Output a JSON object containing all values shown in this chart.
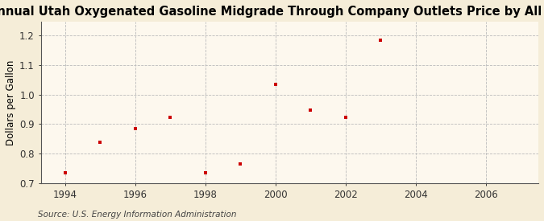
{
  "title": "Annual Utah Oxygenated Gasoline Midgrade Through Company Outlets Price by All Sellers",
  "ylabel": "Dollars per Gallon",
  "source": "Source: U.S. Energy Information Administration",
  "x_data": [
    1994,
    1995,
    1996,
    1997,
    1998,
    1999,
    2000,
    2001,
    2002,
    2003
  ],
  "y_data": [
    0.735,
    0.84,
    0.885,
    0.922,
    0.735,
    0.765,
    1.035,
    0.948,
    0.923,
    1.183
  ],
  "xlim": [
    1993.3,
    2007.5
  ],
  "ylim": [
    0.7,
    1.245
  ],
  "yticks": [
    0.7,
    0.8,
    0.9,
    1.0,
    1.1,
    1.2
  ],
  "xticks": [
    1994,
    1996,
    1998,
    2000,
    2002,
    2004,
    2006
  ],
  "marker_color": "#cc0000",
  "marker": "s",
  "marker_size": 3.5,
  "background_color": "#f5edd8",
  "plot_bg_color": "#fdf8ee",
  "grid_color": "#bbbbbb",
  "title_fontsize": 10.5,
  "label_fontsize": 8.5,
  "tick_fontsize": 8.5,
  "source_fontsize": 7.5
}
